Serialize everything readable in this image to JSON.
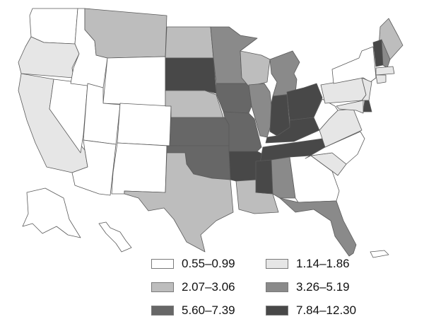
{
  "map": {
    "type": "choropleth",
    "region": "United States",
    "classes": [
      {
        "label": "0.55–0.99",
        "color": "#ffffff"
      },
      {
        "label": "1.14–1.86",
        "color": "#e6e6e6"
      },
      {
        "label": "2.07–3.06",
        "color": "#bdbdbd"
      },
      {
        "label": "3.26–5.19",
        "color": "#8a8a8a"
      },
      {
        "label": "5.60–7.39",
        "color": "#676767"
      },
      {
        "label": "7.84–12.30",
        "color": "#484848"
      }
    ],
    "states": {
      "WA": 0,
      "OR": 1,
      "CA": 1,
      "NV": 0,
      "ID": 0,
      "MT": 2,
      "WY": 0,
      "UT": 0,
      "AZ": 0,
      "CO": 0,
      "NM": 0,
      "ND": 2,
      "SD": 5,
      "NE": 2,
      "KS": 4,
      "OK": 4,
      "TX": 2,
      "MN": 3,
      "IA": 4,
      "MO": 4,
      "AR": 5,
      "LA": 2,
      "WI": 2,
      "IL": 3,
      "MI": 3,
      "IN": 5,
      "OH": 5,
      "KY": 5,
      "TN": 5,
      "MS": 5,
      "AL": 3,
      "GA": 0,
      "FL": 3,
      "SC": 1,
      "NC": 0,
      "VA": 1,
      "WV": 0,
      "PA": 1,
      "NY": 0,
      "ME": 2,
      "VT": 5,
      "NH": 3,
      "MA": 1,
      "CT": 1,
      "NJ": 1,
      "DE": 5,
      "MD": 1,
      "AK": 0,
      "HI": 0,
      "PR": 0
    }
  }
}
